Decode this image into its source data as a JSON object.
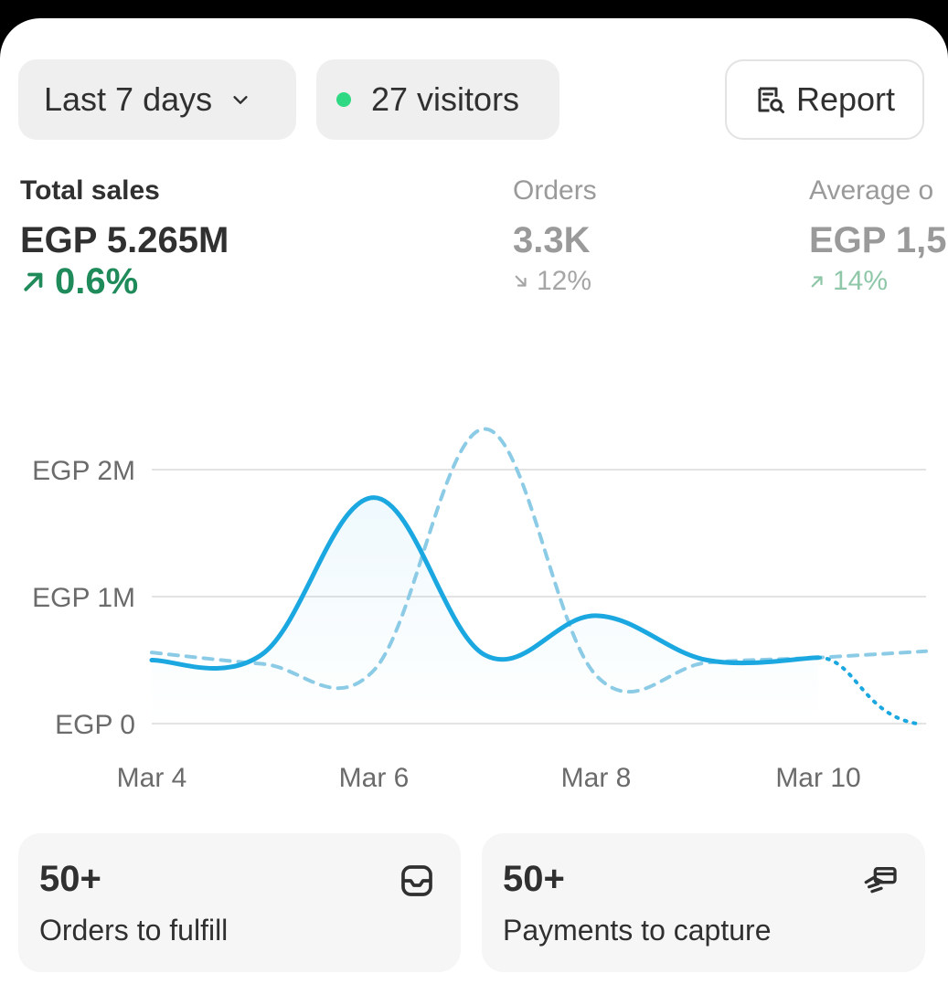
{
  "filters": {
    "date_range_label": "Last 7 days",
    "visitors_label": "27 visitors",
    "report_label": "Report"
  },
  "metrics": [
    {
      "label": "Total sales",
      "value": "EGP 5.265M",
      "delta": "0.6%",
      "direction": "up"
    },
    {
      "label": "Orders",
      "value": "3.3K",
      "delta": "12%",
      "direction": "down"
    },
    {
      "label": "Average o",
      "value": "EGP 1,5",
      "delta": "14%",
      "direction": "up"
    }
  ],
  "chart_data": {
    "type": "line",
    "y_ticks": [
      "EGP 2M",
      "EGP 1M",
      "EGP 0"
    ],
    "x_ticks": [
      "Mar 4",
      "Mar 6",
      "Mar 8",
      "Mar 10"
    ],
    "ylim": [
      0,
      2000000
    ],
    "x": [
      4,
      5,
      6,
      7,
      8,
      9,
      10,
      11
    ],
    "series": [
      {
        "name": "current",
        "style": "solid",
        "color": "#1ba7e0",
        "values": [
          500000,
          550000,
          1780000,
          540000,
          850000,
          500000,
          520000,
          0
        ]
      },
      {
        "name": "previous",
        "style": "dashed",
        "color": "#8ccbe6",
        "values": [
          560000,
          470000,
          420000,
          2320000,
          380000,
          480000,
          520000,
          570000
        ]
      }
    ]
  },
  "tiles": [
    {
      "count": "50+",
      "label": "Orders to fulfill",
      "icon": "inbox-icon"
    },
    {
      "count": "50+",
      "label": "Payments to capture",
      "icon": "payment-hand-icon"
    }
  ]
}
